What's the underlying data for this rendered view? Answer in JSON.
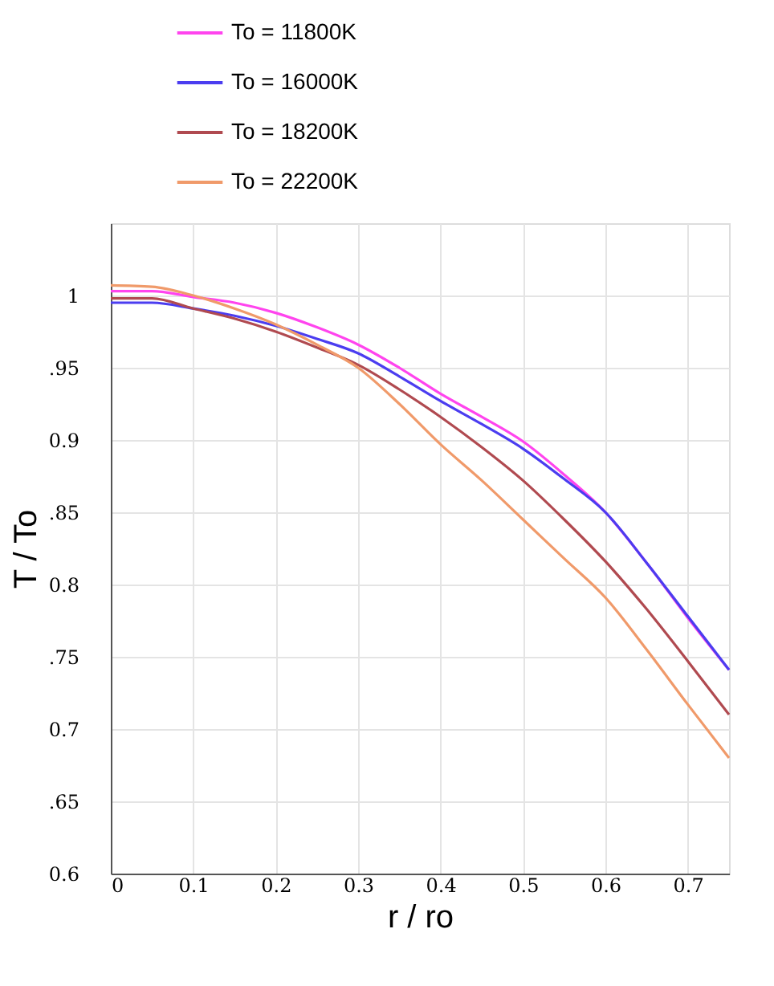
{
  "chart_data": {
    "type": "line",
    "xlabel": "r / ro",
    "ylabel": "T / To",
    "x": [
      0,
      0.05,
      0.1,
      0.15,
      0.2,
      0.25,
      0.3,
      0.35,
      0.4,
      0.45,
      0.5,
      0.55,
      0.6,
      0.65,
      0.7,
      0.75
    ],
    "series": [
      {
        "name": "To = 11800K",
        "color": "#ff44ee",
        "values": [
          1.003,
          1.003,
          0.999,
          0.995,
          0.988,
          0.978,
          0.966,
          0.95,
          0.932,
          0.916,
          0.899,
          0.876,
          0.85,
          0.815,
          0.777,
          0.741
        ]
      },
      {
        "name": "To = 16000K",
        "color": "#4b3df0",
        "values": [
          0.995,
          0.995,
          0.991,
          0.986,
          0.979,
          0.97,
          0.96,
          0.944,
          0.927,
          0.911,
          0.894,
          0.873,
          0.85,
          0.815,
          0.778,
          0.741
        ]
      },
      {
        "name": "To = 18200K",
        "color": "#b04a50",
        "values": [
          0.998,
          0.998,
          0.991,
          0.984,
          0.975,
          0.964,
          0.952,
          0.935,
          0.916,
          0.895,
          0.872,
          0.845,
          0.816,
          0.783,
          0.747,
          0.71
        ]
      },
      {
        "name": "To = 22200K",
        "color": "#f09a6a",
        "values": [
          1.007,
          1.006,
          1.0,
          0.991,
          0.98,
          0.966,
          0.95,
          0.925,
          0.897,
          0.872,
          0.845,
          0.818,
          0.791,
          0.755,
          0.717,
          0.68
        ]
      }
    ],
    "xlim": [
      0,
      0.75
    ],
    "xticks": [
      0,
      0.1,
      0.2,
      0.3,
      0.4,
      0.5,
      0.6,
      0.7
    ],
    "ylim": [
      0.6,
      1.05
    ],
    "yticks": [
      {
        "value": 0.6,
        "label": "0.6"
      },
      {
        "value": 0.65,
        "label": ".65"
      },
      {
        "value": 0.7,
        "label": "0.7"
      },
      {
        "value": 0.75,
        "label": ".75"
      },
      {
        "value": 0.8,
        "label": "0.8"
      },
      {
        "value": 0.85,
        "label": ".85"
      },
      {
        "value": 0.9,
        "label": "0.9"
      },
      {
        "value": 0.95,
        "label": ".95"
      },
      {
        "value": 1,
        "label": "1"
      }
    ],
    "grid": true,
    "legend": "top",
    "marker": "none",
    "line_style": "solid"
  }
}
